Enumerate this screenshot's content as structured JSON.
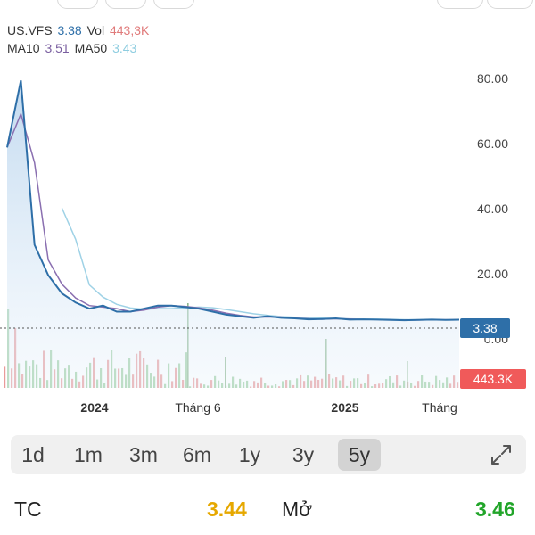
{
  "header": {
    "symbol": "US.VFS",
    "price": "3.38",
    "vol_label": "Vol",
    "volume": "443,3K",
    "ma10_label": "MA10",
    "ma10": "3.51",
    "ma50_label": "MA50",
    "ma50": "3.43"
  },
  "colors": {
    "price": "#2e6fa8",
    "volume": "#e07a7a",
    "ma10": "#7a5fa0",
    "ma50": "#8ecde0",
    "up": "#22a52a",
    "ref": "#e6a800"
  },
  "chart_data": {
    "type": "line",
    "y_ticks": [
      "80.00",
      "60.00",
      "40.00",
      "20.00",
      "0.00"
    ],
    "x_ticks": [
      "2024",
      "Tháng 6",
      "2025",
      "Tháng"
    ],
    "last_price_label": "3.38",
    "last_volume_label": "443.3K",
    "series": [
      {
        "values": [
          60,
          82,
          28,
          18,
          12,
          9,
          7,
          8,
          6,
          6,
          7,
          8,
          8,
          7.5,
          7,
          6,
          5,
          4.5,
          4,
          4.5,
          4,
          3.8,
          3.5,
          3.6,
          3.8,
          3.4,
          3.5,
          3.4,
          3.3,
          3.2,
          3.3,
          3.4,
          3.3,
          3.38
        ]
      }
    ],
    "ylim": [
      0,
      85
    ]
  },
  "ranges": [
    "1d",
    "1m",
    "3m",
    "6m",
    "1y",
    "3y",
    "5y"
  ],
  "active_range": "5y",
  "stats": {
    "tc_label": "TC",
    "tc_value": "3.44",
    "open_label": "Mở",
    "open_value": "3.46"
  }
}
